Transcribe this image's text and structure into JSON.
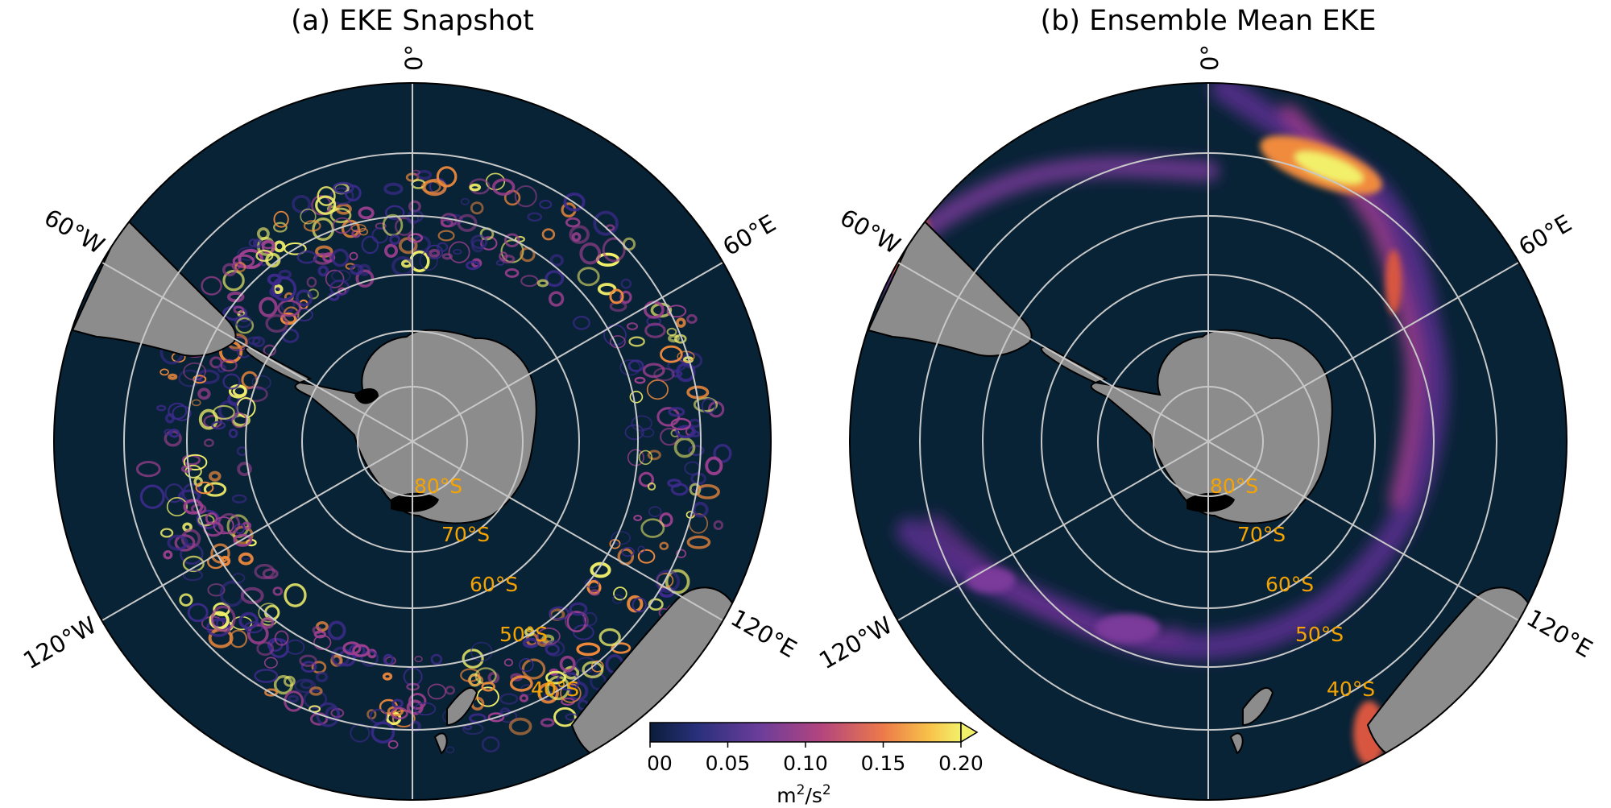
{
  "panels": [
    {
      "title": "(a) EKE Snapshot"
    },
    {
      "title": "(b) Ensemble Mean EKE"
    }
  ],
  "longitude_labels": [
    "0°",
    "60°E",
    "120°E",
    "60°W",
    "120°W"
  ],
  "latitude_labels": [
    "80°S",
    "70°S",
    "60°S",
    "50°S",
    "40°S"
  ],
  "colorbar": {
    "ticks": [
      "0.00",
      "0.05",
      "0.10",
      "0.15",
      "0.20"
    ],
    "min": 0.0,
    "max": 0.2,
    "extend": "max",
    "unit_base": "m",
    "unit_exp": "2",
    "unit_sep": "/s",
    "unit_exp2": "2",
    "colormap": "plasma-like (dark navy → purple → orange → yellow)"
  },
  "colors": {
    "ocean": "#082336",
    "land": "#8c8c8c",
    "grid": "#c8c8c8",
    "lat_label": "#f5a300",
    "eke_low": "#3b2a8a",
    "eke_mid": "#9c3f8f",
    "eke_high": "#f08a3c",
    "eke_max": "#f2f06a"
  }
}
